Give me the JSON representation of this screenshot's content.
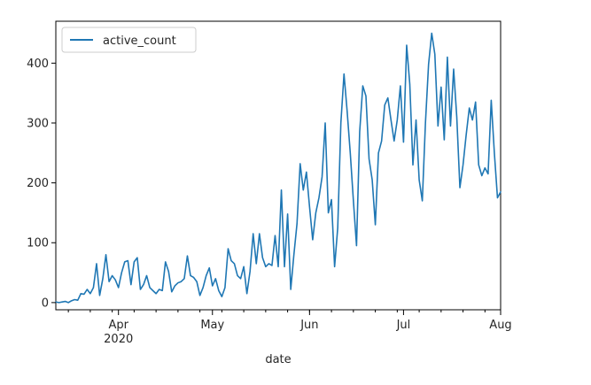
{
  "chart_data": {
    "type": "line",
    "title": "",
    "xlabel": "date",
    "ylabel": "",
    "xlim": [
      "2020-03-12",
      "2020-08-01"
    ],
    "ylim": [
      -12,
      470
    ],
    "grid": false,
    "legend_position": "top-left",
    "y_ticks": [
      0,
      100,
      200,
      300,
      400
    ],
    "x_ticks": [
      {
        "date": "2020-04-01",
        "label": "Apr",
        "sublabel": "2020"
      },
      {
        "date": "2020-05-01",
        "label": "May",
        "sublabel": ""
      },
      {
        "date": "2020-06-01",
        "label": "Jun",
        "sublabel": ""
      },
      {
        "date": "2020-07-01",
        "label": "Jul",
        "sublabel": ""
      },
      {
        "date": "2020-08-01",
        "label": "Aug",
        "sublabel": ""
      }
    ],
    "series": [
      {
        "name": "active_count",
        "color": "#1f77b4",
        "x": [
          "2020-03-12",
          "2020-03-13",
          "2020-03-14",
          "2020-03-15",
          "2020-03-16",
          "2020-03-17",
          "2020-03-18",
          "2020-03-19",
          "2020-03-20",
          "2020-03-21",
          "2020-03-22",
          "2020-03-23",
          "2020-03-24",
          "2020-03-25",
          "2020-03-26",
          "2020-03-27",
          "2020-03-28",
          "2020-03-29",
          "2020-03-30",
          "2020-03-31",
          "2020-04-01",
          "2020-04-02",
          "2020-04-03",
          "2020-04-04",
          "2020-04-05",
          "2020-04-06",
          "2020-04-07",
          "2020-04-08",
          "2020-04-09",
          "2020-04-10",
          "2020-04-11",
          "2020-04-12",
          "2020-04-13",
          "2020-04-14",
          "2020-04-15",
          "2020-04-16",
          "2020-04-17",
          "2020-04-18",
          "2020-04-19",
          "2020-04-20",
          "2020-04-21",
          "2020-04-22",
          "2020-04-23",
          "2020-04-24",
          "2020-04-25",
          "2020-04-26",
          "2020-04-27",
          "2020-04-28",
          "2020-04-29",
          "2020-04-30",
          "2020-05-01",
          "2020-05-02",
          "2020-05-03",
          "2020-05-04",
          "2020-05-05",
          "2020-05-06",
          "2020-05-07",
          "2020-05-08",
          "2020-05-09",
          "2020-05-10",
          "2020-05-11",
          "2020-05-12",
          "2020-05-13",
          "2020-05-14",
          "2020-05-15",
          "2020-05-16",
          "2020-05-17",
          "2020-05-18",
          "2020-05-19",
          "2020-05-20",
          "2020-05-21",
          "2020-05-22",
          "2020-05-23",
          "2020-05-24",
          "2020-05-25",
          "2020-05-26",
          "2020-05-27",
          "2020-05-28",
          "2020-05-29",
          "2020-05-30",
          "2020-05-31",
          "2020-06-01",
          "2020-06-02",
          "2020-06-03",
          "2020-06-04",
          "2020-06-05",
          "2020-06-06",
          "2020-06-07",
          "2020-06-08",
          "2020-06-09",
          "2020-06-10",
          "2020-06-11",
          "2020-06-12",
          "2020-06-13",
          "2020-06-14",
          "2020-06-15",
          "2020-06-16",
          "2020-06-17",
          "2020-06-18",
          "2020-06-19",
          "2020-06-20",
          "2020-06-21",
          "2020-06-22",
          "2020-06-23",
          "2020-06-24",
          "2020-06-25",
          "2020-06-26",
          "2020-06-27",
          "2020-06-28",
          "2020-06-29",
          "2020-06-30",
          "2020-07-01",
          "2020-07-02",
          "2020-07-03",
          "2020-07-04",
          "2020-07-05",
          "2020-07-06",
          "2020-07-07",
          "2020-07-08",
          "2020-07-09",
          "2020-07-10",
          "2020-07-11",
          "2020-07-12",
          "2020-07-13",
          "2020-07-14",
          "2020-07-15",
          "2020-07-16",
          "2020-07-17",
          "2020-07-18",
          "2020-07-19",
          "2020-07-20",
          "2020-07-21",
          "2020-07-22",
          "2020-07-23",
          "2020-07-24",
          "2020-07-25",
          "2020-07-26",
          "2020-07-27",
          "2020-07-28",
          "2020-07-29",
          "2020-07-30",
          "2020-07-31",
          "2020-08-01"
        ],
        "y": [
          1,
          0,
          1,
          2,
          0,
          3,
          5,
          4,
          15,
          14,
          22,
          15,
          25,
          65,
          12,
          40,
          80,
          35,
          45,
          38,
          25,
          50,
          68,
          70,
          30,
          68,
          75,
          22,
          30,
          45,
          25,
          20,
          15,
          22,
          20,
          68,
          52,
          18,
          28,
          33,
          35,
          40,
          78,
          45,
          42,
          35,
          12,
          25,
          45,
          58,
          28,
          40,
          20,
          10,
          25,
          90,
          70,
          65,
          45,
          40,
          60,
          15,
          52,
          115,
          65,
          115,
          75,
          60,
          65,
          62,
          112,
          60,
          188,
          60,
          148,
          22,
          80,
          132,
          232,
          188,
          218,
          160,
          105,
          150,
          175,
          210,
          300,
          150,
          172,
          60,
          125,
          300,
          382,
          320,
          250,
          170,
          95,
          285,
          362,
          345,
          240,
          205,
          130,
          250,
          270,
          330,
          342,
          305,
          270,
          305,
          362,
          268,
          430,
          365,
          230,
          305,
          205,
          170,
          300,
          398,
          450,
          415,
          295,
          360,
          272,
          410,
          295,
          390,
          310,
          192,
          230,
          280,
          325,
          305,
          335,
          230,
          212,
          225,
          215,
          338,
          250,
          175,
          185
        ]
      }
    ]
  }
}
